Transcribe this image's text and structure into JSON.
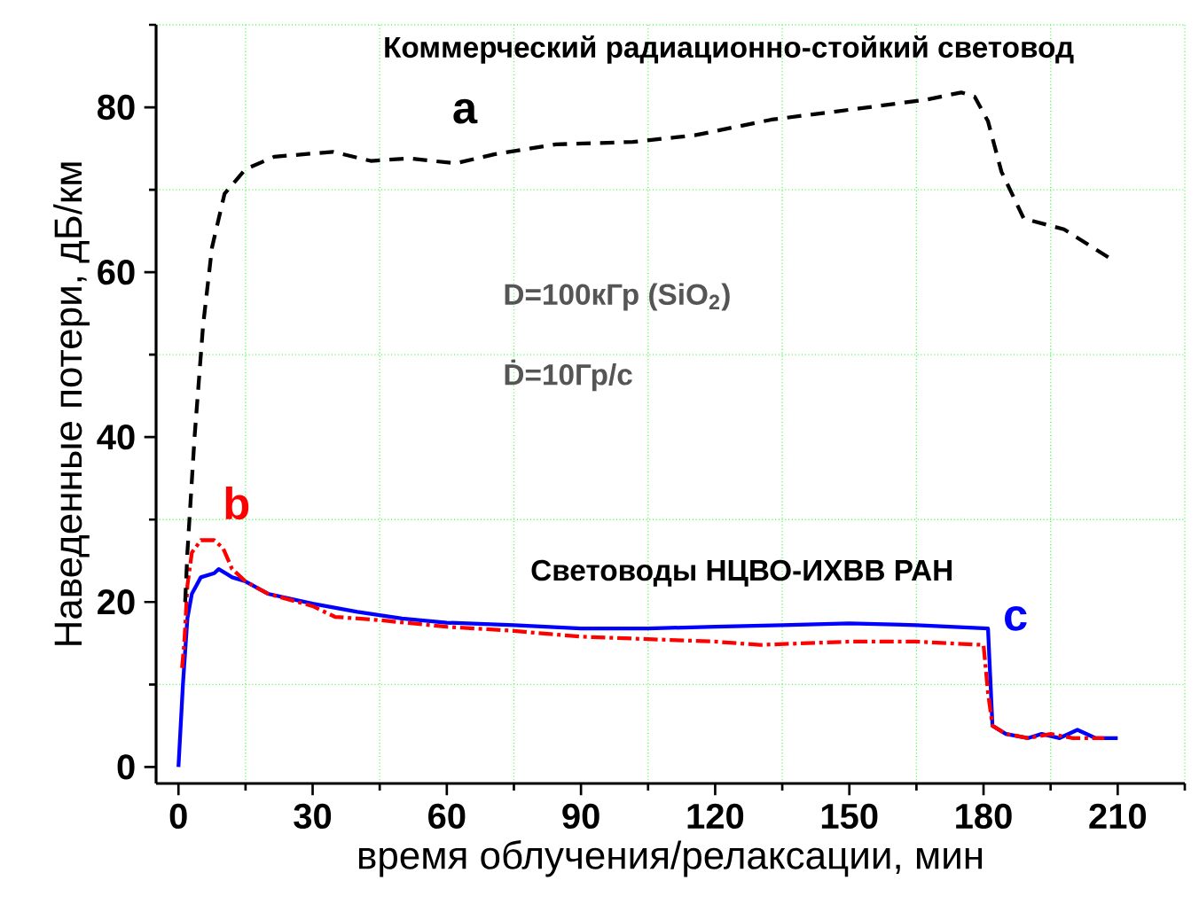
{
  "chart_data": {
    "type": "line",
    "xlabel": "время облучения/релаксации, мин",
    "ylabel": "Наведенные потери, дБ/км",
    "xlim": [
      -5,
      225
    ],
    "ylim": [
      -2,
      90
    ],
    "xticks": [
      0,
      {
        "value": 15,
        "label": null
      },
      30,
      {
        "value": 45,
        "label": null
      },
      60,
      {
        "value": 75,
        "label": null
      },
      90,
      {
        "value": 105,
        "label": null
      },
      120,
      {
        "value": 135,
        "label": null
      },
      150,
      {
        "value": 165,
        "label": null
      },
      180,
      {
        "value": 195,
        "label": null
      },
      210,
      {
        "value": 225,
        "label": null
      }
    ],
    "yticks": [
      0,
      {
        "value": 10,
        "label": null
      },
      20,
      {
        "value": 30,
        "label": null
      },
      40,
      {
        "value": 50,
        "label": null
      },
      60,
      {
        "value": 70,
        "label": null
      },
      80,
      {
        "value": 90,
        "label": null
      }
    ],
    "grid": true,
    "legend": false,
    "annotations": [
      "Коммерческий радиационно-стойкий световод",
      "D=100кГр (SiO$_{2}$)",
      "Ḋ=10Гр/с",
      "Световоды  НЦВО-ИХВВ РАН"
    ],
    "series": [
      {
        "name": "a",
        "color": "#000000",
        "line_style": "dashed",
        "x": [
          1.5,
          2,
          3.6,
          5.5,
          7.5,
          10.3,
          15,
          21.4,
          34.5,
          43,
          51.6,
          62,
          70.6,
          84.4,
          101.6,
          115.4,
          132.6,
          150,
          167,
          175,
          178,
          181,
          184,
          189,
          198,
          208.5
        ],
        "values": [
          20,
          26,
          40,
          53.5,
          63,
          69.5,
          72.5,
          74,
          74.6,
          73.5,
          73.8,
          73.2,
          74.3,
          75.5,
          75.8,
          76.6,
          78.5,
          79.7,
          80.9,
          81.8,
          81.3,
          78.3,
          72.2,
          66.5,
          65.2,
          61.6
        ]
      },
      {
        "name": "b",
        "color": "#ff0000",
        "line_style": "dashdot",
        "x": [
          0.8,
          1.3,
          2,
          3,
          5,
          8,
          10,
          12,
          15,
          20,
          30,
          35,
          45,
          60,
          75,
          90,
          105,
          120,
          130,
          150,
          165,
          180,
          181,
          182,
          185,
          190,
          195,
          200,
          204,
          207
        ],
        "values": [
          12,
          15,
          22,
          26,
          27.5,
          27.5,
          26.5,
          24,
          22.5,
          21,
          19.5,
          18.2,
          17.8,
          17,
          16.5,
          15.8,
          15.5,
          15.2,
          14.8,
          15.2,
          15.2,
          14.8,
          9,
          5,
          4,
          3.5,
          4,
          3.5,
          3.5,
          3.5
        ]
      },
      {
        "name": "c",
        "color": "#0000ff",
        "line_style": "solid",
        "x": [
          0,
          1,
          2,
          3,
          5,
          8,
          9,
          12,
          15,
          20,
          30,
          40,
          50,
          60,
          75,
          90,
          105,
          120,
          135,
          150,
          165,
          181,
          182,
          185,
          190,
          193,
          197,
          201,
          205,
          210
        ],
        "values": [
          0,
          10,
          18,
          21,
          23,
          23.5,
          24,
          23,
          22.5,
          21,
          19.8,
          18.8,
          18,
          17.5,
          17.2,
          16.8,
          16.8,
          17,
          17.2,
          17.4,
          17.2,
          16.8,
          5,
          4,
          3.5,
          4,
          3.5,
          4.5,
          3.5,
          3.5
        ]
      }
    ]
  }
}
